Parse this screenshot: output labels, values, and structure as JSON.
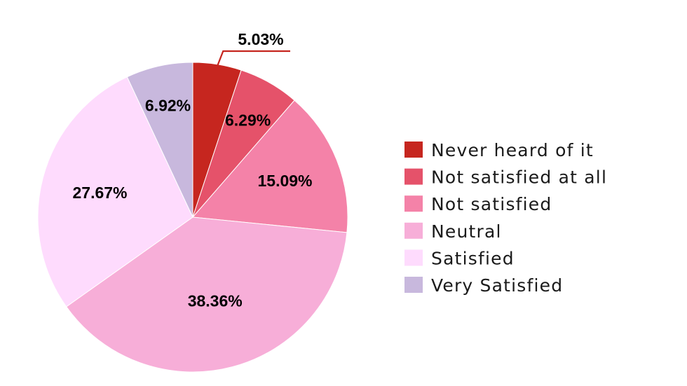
{
  "chart_data": {
    "type": "pie",
    "title": "",
    "start_angle_deg": 0,
    "direction": "clockwise",
    "slices": [
      {
        "name": "Never heard of it",
        "value": 5.03,
        "label": "5.03%",
        "color": "#c6261f"
      },
      {
        "name": "Not satisfied at all",
        "value": 6.29,
        "label": "6.29%",
        "color": "#e5526a"
      },
      {
        "name": "Not satisfied",
        "value": 15.09,
        "label": "15.09%",
        "color": "#f482a8"
      },
      {
        "name": "Neutral",
        "value": 38.36,
        "label": "38.36%",
        "color": "#f7aed8"
      },
      {
        "name": "Satisfied",
        "value": 27.67,
        "label": "27.67%",
        "color": "#fedbfd"
      },
      {
        "name": "Very Satisfied",
        "value": 6.92,
        "label": "6.92%",
        "color": "#c8b8dd"
      }
    ],
    "legend": {
      "placement": "right",
      "items": [
        "Never heard of it",
        "Not satisfied at all",
        "Not satisfied",
        "Neutral",
        "Satisfied",
        "Very Satisfied"
      ]
    },
    "callout_color": "#c6261f"
  }
}
